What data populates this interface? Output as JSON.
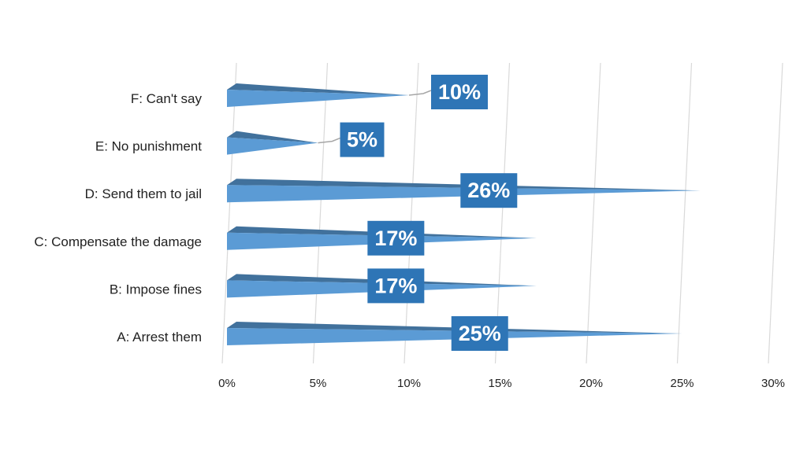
{
  "chart_data": {
    "type": "bar",
    "orientation": "horizontal",
    "title": "",
    "xlabel": "",
    "ylabel": "",
    "categories": [
      "A: Arrest them",
      "B: Impose fines",
      "C: Compensate the damage",
      "D: Send them to jail",
      "E: No punishment",
      "F: Can't say"
    ],
    "values": [
      25,
      17,
      17,
      26,
      5,
      10
    ],
    "data_labels": [
      "25%",
      "17%",
      "17%",
      "26%",
      "5%",
      "10%"
    ],
    "xlim": [
      0,
      30
    ],
    "x_ticks": [
      0,
      5,
      10,
      15,
      20,
      25,
      30
    ],
    "x_tick_labels": [
      "0%",
      "5%",
      "10%",
      "15%",
      "20%",
      "25%",
      "30%"
    ],
    "grid": true,
    "legend": "none"
  },
  "colors": {
    "bar_front": "#5b9bd5",
    "bar_top": "#41719c",
    "label_box": "#2e75b6",
    "label_text": "#ffffff",
    "gridline": "#d9d9d9",
    "leader_line": "#a6a6a6"
  }
}
